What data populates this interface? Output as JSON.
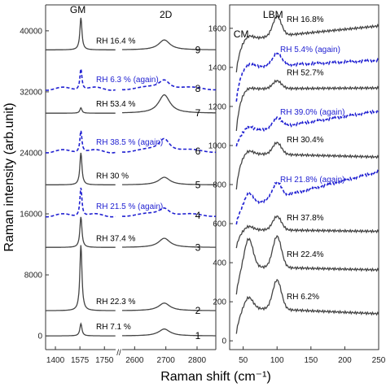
{
  "figure": {
    "ylabel": "Raman intensity (arb.unit)",
    "xlabel": "Raman shift (cm⁻¹)",
    "axis_break_mark": "//"
  },
  "chart_data": [
    {
      "type": "line",
      "panel": "left",
      "peak_labels": [
        "GM",
        "2D"
      ],
      "x_segments": [
        [
          1330,
          1830
        ],
        [
          2560,
          2860
        ]
      ],
      "x_ticks_segment1": [
        1400,
        1575,
        1750
      ],
      "x_ticks_segment2": [
        2600,
        2700,
        2800
      ],
      "y_ticks": [
        0,
        8000,
        16000,
        24000,
        32000,
        40000
      ],
      "ylim": [
        -1800,
        43400
      ],
      "series": [
        {
          "index": "1",
          "label": "RH 7.1 %",
          "dashed": false,
          "color": "#444444",
          "offset": 0,
          "gm_height": 1600,
          "d2_height": 900
        },
        {
          "index": "2",
          "label": "RH 22.3 %",
          "dashed": false,
          "color": "#444444",
          "offset": 3300,
          "gm_height": 8600,
          "d2_height": 1000
        },
        {
          "index": "3",
          "label": "RH 37.4 %",
          "dashed": false,
          "color": "#444444",
          "offset": 11600,
          "gm_height": 4000,
          "d2_height": 1200
        },
        {
          "index": "4",
          "label": "RH 21.5 % (again)",
          "dashed": true,
          "color": "#1f1fd1",
          "offset": 15800,
          "gm_height": 3800,
          "d2_height": 1100
        },
        {
          "index": "5",
          "label": "RH 30 %",
          "dashed": false,
          "color": "#444444",
          "offset": 19800,
          "gm_height": 4200,
          "d2_height": 1000
        },
        {
          "index": "6",
          "label": "RH 38.5 % (again)",
          "dashed": true,
          "color": "#1f1fd1",
          "offset": 24200,
          "gm_height": 2900,
          "d2_height": 1800
        },
        {
          "index": "7",
          "label": "RH 53.4 %",
          "dashed": false,
          "color": "#444444",
          "offset": 29200,
          "gm_height": 700,
          "d2_height": 2400
        },
        {
          "index": "8",
          "label": "RH 6.3 % (again)",
          "dashed": true,
          "color": "#1f1fd1",
          "offset": 32400,
          "gm_height": 2800,
          "d2_height": 1300
        },
        {
          "index": "9",
          "label": "RH 16.4 %",
          "dashed": false,
          "color": "#444444",
          "offset": 37500,
          "gm_height": 4200,
          "d2_height": 1300
        }
      ]
    },
    {
      "type": "line",
      "panel": "right",
      "peak_labels": [
        "CM",
        "LBM"
      ],
      "xlim": [
        30,
        250
      ],
      "x_ticks": [
        50,
        100,
        150,
        200,
        250
      ],
      "y_ticks": [
        0,
        200,
        400,
        600,
        800,
        1000,
        1200,
        1400,
        1600
      ],
      "ylim": [
        -45,
        1720
      ],
      "series": [
        {
          "label": "RH 6.2%",
          "dashed": false,
          "color": "#444444",
          "offset": 40,
          "level": 130,
          "cm": 60,
          "lbm": 150,
          "tail": 40
        },
        {
          "label": "RH 22.4%",
          "dashed": false,
          "color": "#444444",
          "offset": 240,
          "level": 140,
          "cm": 150,
          "lbm": 160,
          "tail": 60
        },
        {
          "label": "RH 37.8%",
          "dashed": false,
          "color": "#444444",
          "offset": 480,
          "level": 90,
          "cm": 20,
          "lbm": 70,
          "tail": 40
        },
        {
          "label": "RH 21.8% (again)",
          "dashed": true,
          "color": "#1f1fd1",
          "offset": 600,
          "level": 80,
          "cm": 60,
          "lbm": 80,
          "tail": 230
        },
        {
          "label": "RH 30.4%",
          "dashed": false,
          "color": "#444444",
          "offset": 780,
          "level": 180,
          "cm": 20,
          "lbm": 60,
          "tail": 80
        },
        {
          "label": "RH 39.0% (again)",
          "dashed": true,
          "color": "#1f1fd1",
          "offset": 1000,
          "level": 60,
          "cm": 30,
          "lbm": 50,
          "tail": 150
        },
        {
          "label": "RH 52.7%",
          "dashed": false,
          "color": "#444444",
          "offset": 1080,
          "level": 210,
          "cm": 10,
          "lbm": 40,
          "tail": 120
        },
        {
          "label": "RH 5.4% (again)",
          "dashed": true,
          "color": "#1f1fd1",
          "offset": 1230,
          "level": 170,
          "cm": 20,
          "lbm": 60,
          "tail": 130
        },
        {
          "label": "RH 16.8%",
          "dashed": false,
          "color": "#444444",
          "offset": 1380,
          "level": 160,
          "cm": 20,
          "lbm": 100,
          "tail": 160
        }
      ]
    }
  ]
}
